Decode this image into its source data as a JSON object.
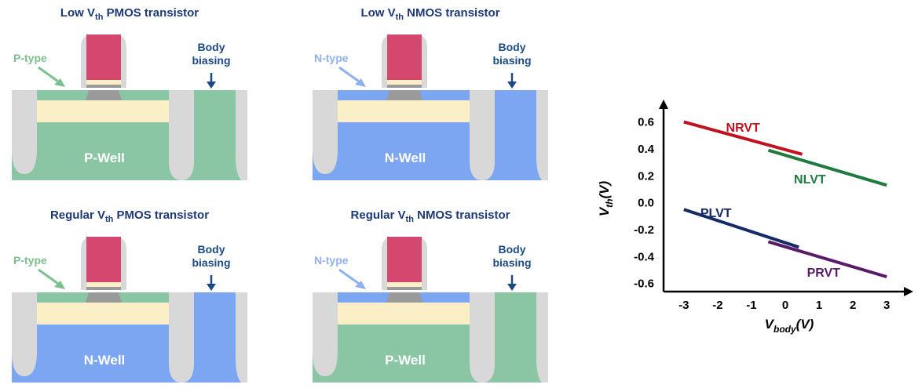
{
  "panels": [
    {
      "title_pre": "Low V",
      "title_sub": "th",
      "title_post": " PMOS transistor",
      "type_label": "P-type",
      "bias_line1": "Body",
      "bias_line2": "biasing",
      "well_label": "P-Well",
      "type_color": "#7dc08e"
    },
    {
      "title_pre": "Low V",
      "title_sub": "th",
      "title_post": " NMOS transistor",
      "type_label": "N-type",
      "bias_line1": "Body",
      "bias_line2": "biasing",
      "well_label": "N-Well",
      "type_color": "#8fb1ee"
    },
    {
      "title_pre": "Regular V",
      "title_sub": "th",
      "title_post": " PMOS transistor",
      "type_label": "P-type",
      "bias_line1": "Body",
      "bias_line2": "biasing",
      "well_label": "N-Well",
      "type_color": "#7dc08e"
    },
    {
      "title_pre": "Regular V",
      "title_sub": "th",
      "title_post": " NMOS transistor",
      "type_label": "N-type",
      "bias_line1": "Body",
      "bias_line2": "biasing",
      "well_label": "P-Well",
      "type_color": "#8fb1ee"
    }
  ],
  "colors": {
    "pwell": "#8ac6a3",
    "nwell": "#7ca5f2",
    "gate": "#d4476f",
    "spacer": "#d8d8d8",
    "channel": "#fbefc8",
    "dielectric": "#9a9a9a",
    "trench": "#d8d8d8",
    "pregion": "#8ac6a3",
    "nregion": "#7ca5f2",
    "title": "#1c3a78"
  },
  "chart_data": {
    "type": "line",
    "xlabel": "V_body(V)",
    "ylabel": "V_th(V)",
    "xlim": [
      -3.6,
      3.6
    ],
    "ylim": [
      -0.66,
      0.72
    ],
    "xticks": [
      "-3",
      "-2",
      "-1",
      "0",
      "1",
      "2",
      "3"
    ],
    "yticks": [
      "0.6",
      "0.4",
      "0.2",
      "0.0",
      "-0.2",
      "-0.4",
      "-0.6"
    ],
    "series": [
      {
        "name": "NRVT",
        "color": "#c0121e",
        "x": [
          -3,
          0.5
        ],
        "y": [
          0.6,
          0.36
        ]
      },
      {
        "name": "NLVT",
        "color": "#1e7a3e",
        "x": [
          -0.5,
          3
        ],
        "y": [
          0.39,
          0.13
        ]
      },
      {
        "name": "PLVT",
        "color": "#162a6a",
        "x": [
          -3,
          0.4
        ],
        "y": [
          -0.05,
          -0.33
        ]
      },
      {
        "name": "PRVT",
        "color": "#5a1a6a",
        "x": [
          -0.5,
          3
        ],
        "y": [
          -0.29,
          -0.55
        ]
      }
    ]
  }
}
